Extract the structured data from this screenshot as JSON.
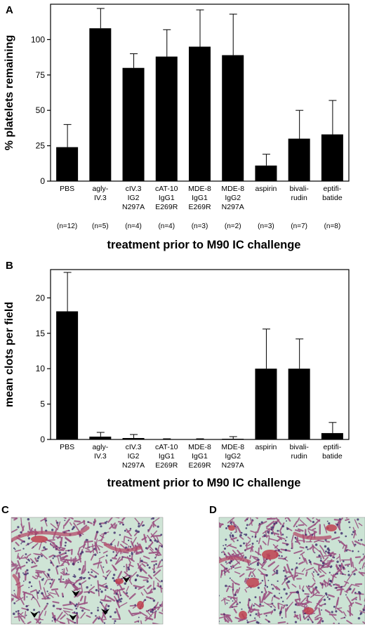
{
  "chart_data": [
    {
      "type": "bar",
      "panel_label": "A",
      "categories": [
        [
          "PBS"
        ],
        [
          "agly-",
          "IV.3"
        ],
        [
          "cIV.3",
          "IG2",
          "N297A"
        ],
        [
          "cAT-10",
          "IgG1",
          "E269R"
        ],
        [
          "MDE-8",
          "IgG1",
          "E269R"
        ],
        [
          "MDE-8",
          "IgG2",
          "N297A"
        ],
        [
          "aspirin"
        ],
        [
          "bivali-",
          "rudin"
        ],
        [
          "eptifi-",
          "batide"
        ]
      ],
      "n_labels": [
        "(n=12)",
        "(n=5)",
        "(n=4)",
        "(n=4)",
        "(n=3)",
        "(n=2)",
        "(n=3)",
        "(n=7)",
        "(n=8)"
      ],
      "values": [
        24,
        108,
        80,
        88,
        95,
        89,
        11,
        30,
        33
      ],
      "errors": [
        16,
        14,
        10,
        19,
        26,
        29,
        8,
        20,
        24
      ],
      "ylabel": "% platelets remaining",
      "xlabel": "treatment prior to M90 IC challenge",
      "ylim": [
        0,
        125
      ],
      "yticks": [
        0,
        25,
        50,
        75,
        100
      ],
      "bar_color": "#000000",
      "grid": false
    },
    {
      "type": "bar",
      "panel_label": "B",
      "categories": [
        [
          "PBS"
        ],
        [
          "agly-",
          "IV.3"
        ],
        [
          "cIV.3",
          "IG2",
          "N297A"
        ],
        [
          "cAT-10",
          "IgG1",
          "E269R"
        ],
        [
          "MDE-8",
          "IgG1",
          "E269R"
        ],
        [
          "MDE-8",
          "IgG2",
          "N297A"
        ],
        [
          "aspirin"
        ],
        [
          "bivali-",
          "rudin"
        ],
        [
          "eptifi-",
          "batide"
        ]
      ],
      "values": [
        18.1,
        0.4,
        0.2,
        0.0,
        0.0,
        0.1,
        10.0,
        10.0,
        0.9
      ],
      "errors": [
        5.5,
        0.6,
        0.5,
        0.1,
        0.1,
        0.3,
        5.6,
        4.2,
        1.5
      ],
      "ylabel": "mean clots per field",
      "xlabel": "treatment prior to M90 IC challenge",
      "ylim": [
        0,
        24
      ],
      "yticks": [
        0,
        5,
        10,
        15,
        20
      ],
      "bar_color": "#000000",
      "grid": false
    }
  ],
  "micrographs": [
    {
      "panel_label": "C",
      "arrowheads": 5,
      "background": "#cfe4d6",
      "tissue": "#9a4f80"
    },
    {
      "panel_label": "D",
      "arrowheads": 0,
      "background": "#cbe3d4",
      "tissue": "#9a4f80"
    }
  ]
}
